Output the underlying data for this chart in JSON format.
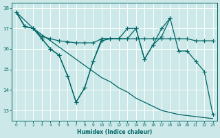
{
  "xlabel": "Humidex (Indice chaleur)",
  "bg_color": "#cce8e8",
  "grid_color": "#ffffff",
  "line_color": "#006666",
  "xlim": [
    -0.5,
    23.5
  ],
  "ylim": [
    12.5,
    18.25
  ],
  "yticks": [
    13,
    14,
    15,
    16,
    17,
    18
  ],
  "xticks": [
    0,
    1,
    2,
    3,
    4,
    5,
    6,
    7,
    8,
    9,
    10,
    11,
    12,
    13,
    14,
    15,
    16,
    17,
    18,
    19,
    20,
    21,
    22,
    23
  ],
  "line1_x": [
    0,
    1,
    2,
    3,
    4,
    5,
    6,
    7,
    8,
    9,
    10,
    11,
    12,
    13,
    14,
    15,
    16,
    17,
    18,
    19,
    20,
    21,
    22,
    23
  ],
  "line1_y": [
    17.8,
    17.1,
    17.0,
    16.5,
    16.0,
    15.7,
    14.7,
    13.4,
    14.1,
    15.4,
    16.5,
    16.5,
    16.5,
    16.5,
    17.0,
    15.5,
    16.2,
    16.6,
    17.5,
    15.9,
    15.9,
    15.4,
    14.9,
    12.8
  ],
  "line2_x": [
    0,
    1,
    2,
    3,
    4,
    5,
    6,
    7,
    8,
    9,
    10,
    11,
    12,
    13,
    14,
    15,
    16,
    17,
    18
  ],
  "line2_y": [
    17.8,
    17.1,
    17.0,
    16.5,
    16.0,
    15.7,
    14.7,
    13.4,
    14.1,
    15.4,
    16.4,
    16.5,
    16.5,
    17.0,
    17.0,
    15.5,
    16.2,
    17.0,
    17.5
  ],
  "line3_x": [
    0,
    1,
    2,
    3,
    4,
    5,
    6,
    7,
    8,
    9,
    10,
    11,
    12,
    13,
    14,
    15,
    16,
    17,
    18,
    19,
    20,
    21,
    22,
    23
  ],
  "line3_y": [
    17.8,
    17.1,
    17.0,
    16.6,
    16.5,
    16.4,
    16.35,
    16.3,
    16.3,
    16.3,
    16.5,
    16.5,
    16.5,
    16.5,
    16.5,
    16.5,
    16.5,
    16.5,
    16.5,
    16.5,
    16.5,
    16.4,
    16.4,
    16.4
  ],
  "line4_x": [
    0,
    1,
    2,
    3,
    4,
    5,
    6,
    7,
    8,
    9,
    10,
    11,
    12,
    13,
    14,
    15,
    16,
    17,
    18,
    19,
    20,
    21,
    22,
    23
  ],
  "line4_y": [
    17.8,
    17.4,
    17.0,
    16.7,
    16.4,
    16.1,
    15.8,
    15.5,
    15.2,
    14.9,
    14.6,
    14.4,
    14.1,
    13.9,
    13.6,
    13.4,
    13.2,
    13.0,
    12.9,
    12.8,
    12.75,
    12.7,
    12.65,
    12.6
  ]
}
